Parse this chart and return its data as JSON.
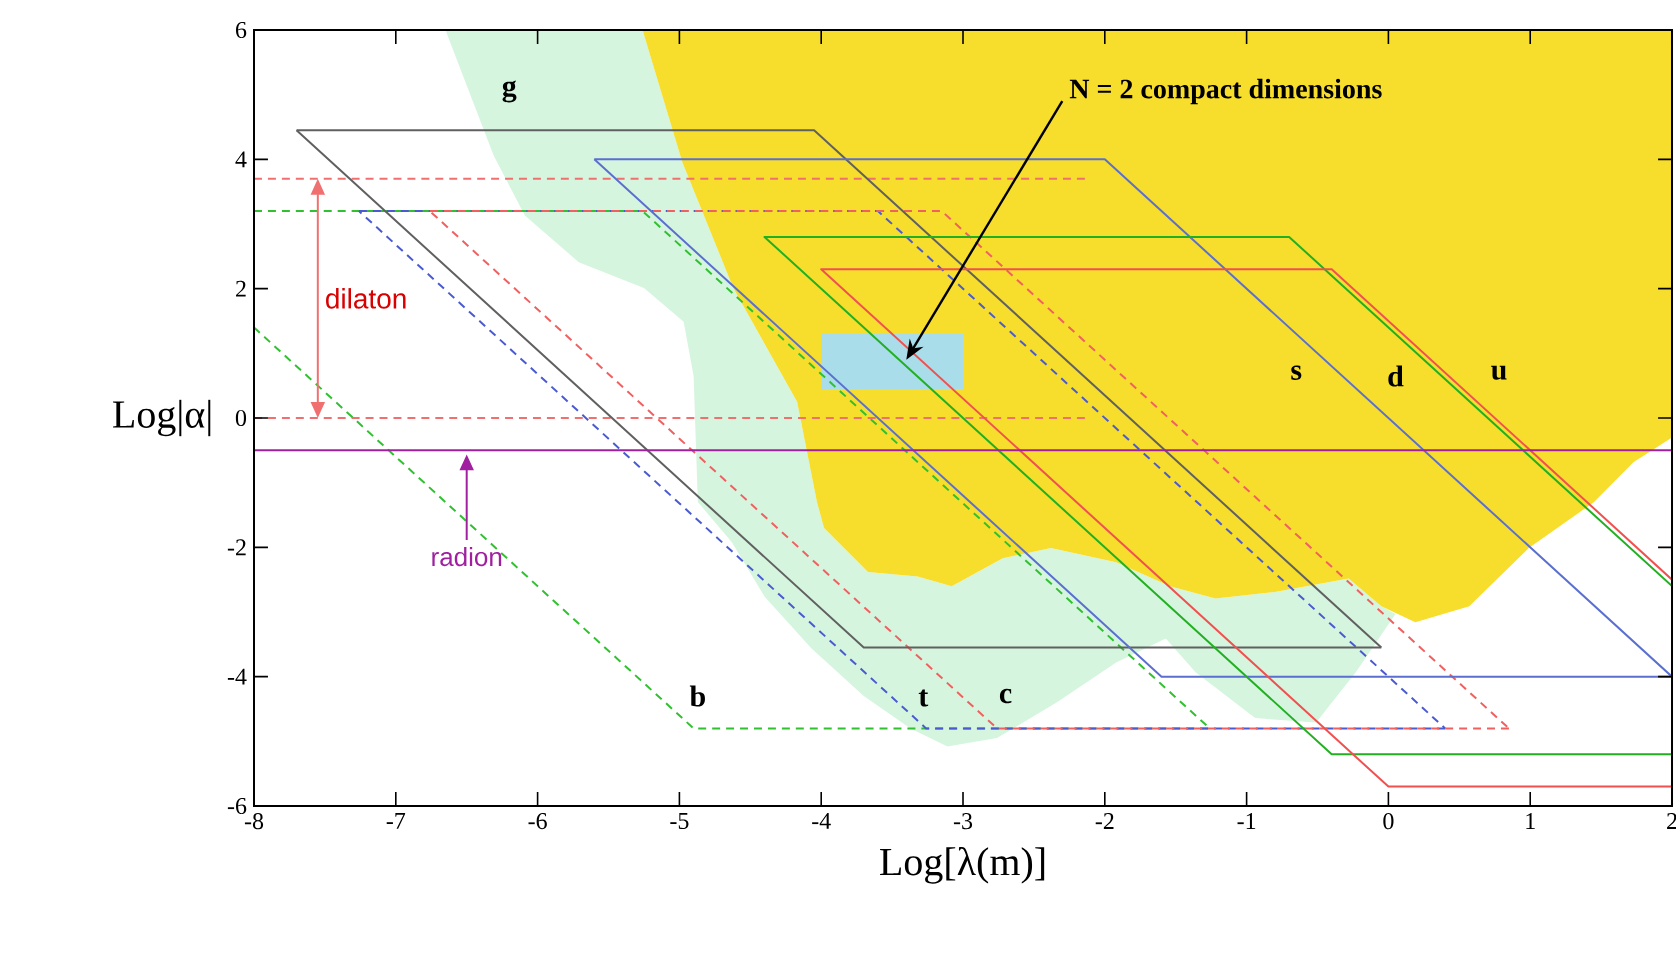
{
  "chart_data": {
    "type": "line",
    "xlabel": "Log[λ(m)]",
    "ylabel": "Log|α|",
    "xlim": [
      -8,
      2
    ],
    "ylim": [
      -6,
      6
    ],
    "xticks": [
      -8,
      -7,
      -6,
      -5,
      -4,
      -3,
      -2,
      -1,
      0,
      1,
      2
    ],
    "yticks": [
      -6,
      -4,
      -2,
      0,
      2,
      4,
      6
    ],
    "series": [
      {
        "type": "area",
        "color": "#d6f5df",
        "x": [
          -6.65,
          -6.51,
          -6.31,
          -6.09,
          -5.71,
          -5.25,
          -4.97,
          -4.9,
          -4.87,
          -4.63,
          -4.4,
          -4.07,
          -3.7,
          -3.37,
          -3.11,
          -2.76,
          -2.34,
          -1.92,
          -1.57,
          -1.36,
          -0.94,
          -0.51,
          -0.23,
          0.05,
          -0.05,
          -0.28,
          -0.8,
          -1.22,
          -1.54,
          -1.92,
          -2.38,
          -2.72,
          -3.08,
          -3.32,
          -3.67,
          -3.98,
          -4.03,
          -4.17,
          -4.62,
          -4.98,
          -5.26
        ],
        "values": [
          6,
          5.2,
          4.06,
          3.13,
          2.41,
          2.01,
          1.49,
          0.65,
          -1.3,
          -1.92,
          -2.76,
          -3.56,
          -4.3,
          -4.8,
          -5.08,
          -4.95,
          -4.4,
          -3.78,
          -3.41,
          -3.93,
          -4.64,
          -4.71,
          -3.93,
          -3.03,
          -2.91,
          -2.48,
          -2.69,
          -2.79,
          -2.6,
          -2.23,
          -2.01,
          -2.17,
          -2.6,
          -2.45,
          -2.38,
          -1.7,
          -1.3,
          0.25,
          2.01,
          3.96,
          6
        ]
      },
      {
        "type": "area",
        "color": "#f7dd2c",
        "x": [
          -5.26,
          -4.98,
          -4.62,
          -4.17,
          -4.03,
          -3.98,
          -3.67,
          -3.32,
          -3.08,
          -2.72,
          -2.38,
          -1.92,
          -1.54,
          -1.22,
          -0.8,
          -0.28,
          -0.05,
          0.19,
          0.57,
          0.99,
          1.45,
          1.73,
          2,
          2
        ],
        "values": [
          6,
          3.96,
          2.01,
          0.25,
          -1.3,
          -1.7,
          -2.38,
          -2.45,
          -2.6,
          -2.17,
          -2.01,
          -2.23,
          -2.6,
          -2.79,
          -2.69,
          -2.48,
          -2.91,
          -3.16,
          -2.91,
          -2.01,
          -1.3,
          -0.68,
          -0.3,
          6
        ]
      },
      {
        "type": "area",
        "color": "#a8dde9",
        "x": [
          -4.0,
          -3.0,
          -3.0,
          -4.0,
          -4.0
        ],
        "values": [
          0.45,
          0.45,
          1.3,
          1.3,
          0.45
        ]
      },
      {
        "color": "#f07070",
        "line_style": "dashed",
        "x": [
          -8,
          -2.1
        ],
        "values": [
          3.7,
          3.7
        ]
      },
      {
        "color": "#f07070",
        "line_style": "dashed",
        "x": [
          -8,
          -2.1
        ],
        "values": [
          0,
          0
        ]
      },
      {
        "name": "b",
        "color": "#30c030",
        "line_style": "dashed",
        "x": [
          -8,
          -5.26,
          -1.26,
          -4.9,
          -8
        ],
        "values": [
          3.2,
          3.2,
          -4.8,
          -4.8,
          1.4
        ]
      },
      {
        "color": "#4a5ad0",
        "line_style": "dashed",
        "x": [
          -7.26,
          -3.6,
          0.4
        ],
        "values": [
          3.2,
          3.2,
          -4.8
        ]
      },
      {
        "name": "t",
        "color": "#4a5ad0",
        "line_style": "dashed",
        "x": [
          0.4,
          -3.26,
          -7.26
        ],
        "values": [
          -4.8,
          -4.8,
          3.2
        ]
      },
      {
        "color": "#f06060",
        "line_style": "dashed",
        "x": [
          -6.76,
          -3.15,
          0.85
        ],
        "values": [
          3.2,
          3.2,
          -4.8
        ]
      },
      {
        "name": "c",
        "color": "#f06060",
        "line_style": "dashed",
        "x": [
          0.85,
          -2.76,
          -6.76
        ],
        "values": [
          -4.8,
          -4.8,
          3.2
        ]
      },
      {
        "name": "g",
        "color": "#606060",
        "x": [
          -7.7,
          -4.05,
          -0.05
        ],
        "values": [
          4.45,
          4.45,
          -3.55
        ]
      },
      {
        "color": "#606060",
        "x": [
          -0.05,
          -3.7,
          -7.7
        ],
        "values": [
          -3.55,
          -3.55,
          4.45
        ]
      },
      {
        "name": "s",
        "color": "#5a6fd0",
        "x": [
          -5.6,
          -2,
          2
        ],
        "values": [
          4,
          4,
          -4
        ]
      },
      {
        "color": "#5a6fd0",
        "x": [
          2,
          -1.6,
          -5.6
        ],
        "values": [
          -4,
          -4,
          4
        ]
      },
      {
        "name": "d",
        "color": "#22b022",
        "x": [
          2,
          -0.4,
          -4.4,
          -0.7,
          2
        ],
        "values": [
          -5.2,
          -5.2,
          2.8,
          2.8,
          -2.6
        ]
      },
      {
        "name": "u",
        "color": "#f05050",
        "x": [
          2,
          0,
          -4,
          -0.4,
          2
        ],
        "values": [
          -5.7,
          -5.7,
          2.3,
          2.3,
          -2.5
        ]
      }
    ],
    "ref_lines": [
      {
        "axis": "y",
        "value": -0.5,
        "label": "radion",
        "color": "#a020a0"
      }
    ],
    "annotations": [
      {
        "text": "N = 2 compact dimensions",
        "x": -3.4,
        "y": 0.9
      },
      "dilaton"
    ]
  }
}
